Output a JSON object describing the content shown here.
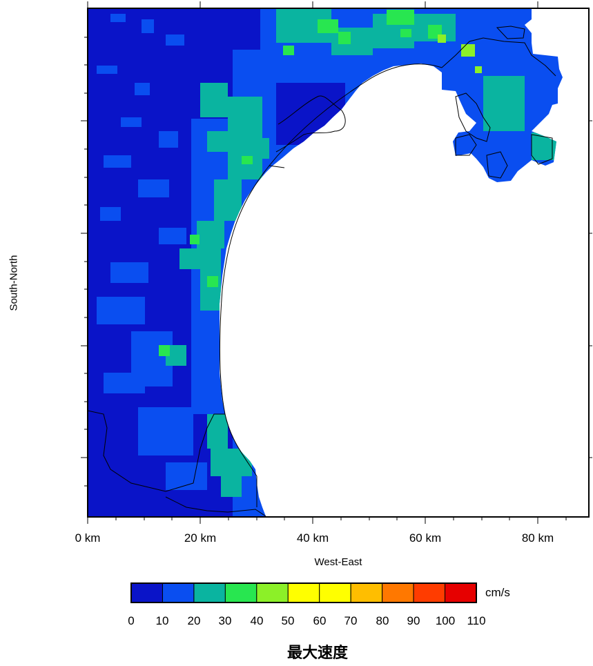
{
  "title": "最大速度",
  "axes": {
    "xlabel": "West-East",
    "ylabel": "South-North",
    "xticks": [
      "0 km",
      "20 km",
      "40 km",
      "60 km",
      "80 km"
    ]
  },
  "colorbar": {
    "unit": "cm/s",
    "ticks": [
      "0",
      "10",
      "20",
      "30",
      "40",
      "50",
      "60",
      "70",
      "80",
      "90",
      "100",
      "110"
    ],
    "bins": [
      {
        "range": "0-10",
        "color": "#0a14c8"
      },
      {
        "range": "10-20",
        "color": "#0a4ef0"
      },
      {
        "range": "20-30",
        "color": "#0ab4a0"
      },
      {
        "range": "30-40",
        "color": "#28e650"
      },
      {
        "range": "40-50",
        "color": "#8cf028"
      },
      {
        "range": "50-60",
        "color": "#ffff00"
      },
      {
        "range": "60-70",
        "color": "#ffff00"
      },
      {
        "range": "70-80",
        "color": "#ffbe00"
      },
      {
        "range": "80-90",
        "color": "#ff7800"
      },
      {
        "range": "90-100",
        "color": "#ff3c00"
      },
      {
        "range": "100-110",
        "color": "#e60000"
      }
    ]
  }
}
